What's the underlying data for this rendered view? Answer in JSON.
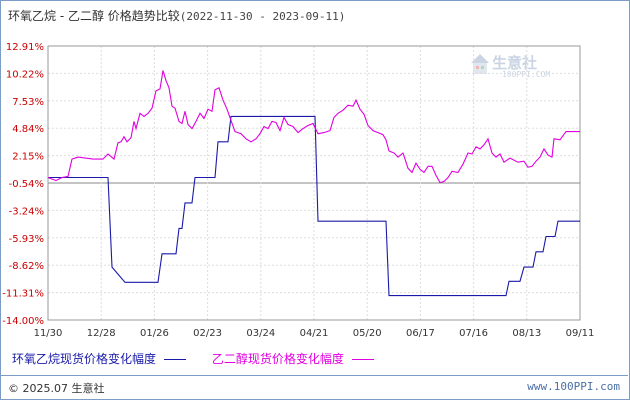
{
  "header": {
    "title": "环氧乙烷 - 乙二醇 价格趋势比较",
    "date_range": "(2022-11-30 - 2023-09-11)"
  },
  "watermark": {
    "text": "生意社",
    "url": "100PPI.COM"
  },
  "footer": {
    "copyright": "© 2025.07 生意社",
    "site": "www.100PPI.com"
  },
  "colors": {
    "series1": "#1a1aaa",
    "series2": "#e000e0",
    "grid": "#dddddd",
    "zero_line": "#888888"
  },
  "chart_data": {
    "type": "line",
    "title": "环氧乙烷 - 乙二醇 价格趋势比较",
    "ylim": [
      -14.0,
      12.91
    ],
    "y_ticks": [
      "12.91%",
      "10.22%",
      "7.53%",
      "4.84%",
      "2.15%",
      "-0.54%",
      "-3.24%",
      "-5.93%",
      "-8.62%",
      "-11.31%",
      "-14.00%"
    ],
    "x_ticks": [
      "11/30",
      "12/28",
      "01/26",
      "02/23",
      "03/24",
      "04/21",
      "05/20",
      "06/17",
      "07/16",
      "08/13",
      "09/11"
    ],
    "grid": true,
    "legend_position": "bottom",
    "series": [
      {
        "name": "环氧乙烷现货价格变化幅度",
        "points": [
          [
            0,
            0
          ],
          [
            60,
            0
          ],
          [
            64,
            -8.8
          ],
          [
            77,
            -10.3
          ],
          [
            110,
            -10.3
          ],
          [
            114,
            -7.5
          ],
          [
            128,
            -7.5
          ],
          [
            131,
            -5.0
          ],
          [
            134,
            -5.0
          ],
          [
            137,
            -2.5
          ],
          [
            144,
            -2.5
          ],
          [
            147,
            0
          ],
          [
            167,
            0
          ],
          [
            170,
            3.5
          ],
          [
            180,
            3.5
          ],
          [
            183,
            6.0
          ],
          [
            267,
            6.0
          ],
          [
            270,
            -4.3
          ],
          [
            338,
            -4.3
          ],
          [
            341,
            -11.6
          ],
          [
            458,
            -11.6
          ],
          [
            461,
            -10.2
          ],
          [
            472,
            -10.2
          ],
          [
            476,
            -8.8
          ],
          [
            485,
            -8.8
          ],
          [
            488,
            -7.3
          ],
          [
            495,
            -7.3
          ],
          [
            498,
            -5.8
          ],
          [
            507,
            -5.8
          ],
          [
            510,
            -4.3
          ],
          [
            532,
            -4.3
          ]
        ]
      },
      {
        "name": "乙二醇现货价格变化幅度",
        "points": [
          [
            0,
            0
          ],
          [
            8,
            -0.3
          ],
          [
            14,
            0
          ],
          [
            20,
            0.1
          ],
          [
            24,
            1.8
          ],
          [
            30,
            2.0
          ],
          [
            45,
            1.8
          ],
          [
            55,
            1.8
          ],
          [
            60,
            2.3
          ],
          [
            66,
            1.8
          ],
          [
            70,
            3.4
          ],
          [
            73,
            3.5
          ],
          [
            76,
            4.0
          ],
          [
            79,
            3.5
          ],
          [
            83,
            3.9
          ],
          [
            86,
            5.5
          ],
          [
            88,
            4.8
          ],
          [
            92,
            6.3
          ],
          [
            96,
            6.0
          ],
          [
            100,
            6.3
          ],
          [
            104,
            6.8
          ],
          [
            108,
            8.5
          ],
          [
            112,
            8.7
          ],
          [
            115,
            10.5
          ],
          [
            118,
            9.5
          ],
          [
            121,
            8.8
          ],
          [
            124,
            7.0
          ],
          [
            127,
            6.8
          ],
          [
            131,
            5.5
          ],
          [
            134,
            5.3
          ],
          [
            137,
            6.5
          ],
          [
            140,
            5.2
          ],
          [
            144,
            4.8
          ],
          [
            148,
            5.5
          ],
          [
            152,
            6.3
          ],
          [
            156,
            5.8
          ],
          [
            160,
            6.7
          ],
          [
            164,
            6.5
          ],
          [
            167,
            8.6
          ],
          [
            171,
            8.8
          ],
          [
            175,
            7.6
          ],
          [
            179,
            6.7
          ],
          [
            183,
            5.6
          ],
          [
            187,
            4.5
          ],
          [
            193,
            4.3
          ],
          [
            198,
            3.8
          ],
          [
            203,
            3.5
          ],
          [
            208,
            3.8
          ],
          [
            212,
            4.3
          ],
          [
            216,
            5.0
          ],
          [
            220,
            4.8
          ],
          [
            224,
            5.5
          ],
          [
            228,
            5.4
          ],
          [
            232,
            4.6
          ],
          [
            236,
            5.9
          ],
          [
            240,
            5.2
          ],
          [
            245,
            5.0
          ],
          [
            250,
            4.4
          ],
          [
            255,
            4.8
          ],
          [
            260,
            5.1
          ],
          [
            265,
            5.3
          ],
          [
            270,
            4.3
          ],
          [
            276,
            4.4
          ],
          [
            282,
            4.6
          ],
          [
            286,
            5.9
          ],
          [
            290,
            6.3
          ],
          [
            295,
            6.6
          ],
          [
            300,
            7.1
          ],
          [
            305,
            7.0
          ],
          [
            308,
            7.6
          ],
          [
            312,
            6.7
          ],
          [
            316,
            6.2
          ],
          [
            320,
            5.1
          ],
          [
            325,
            4.6
          ],
          [
            330,
            4.4
          ],
          [
            335,
            4.2
          ],
          [
            338,
            3.7
          ],
          [
            341,
            2.6
          ],
          [
            346,
            2.4
          ],
          [
            350,
            2.0
          ],
          [
            355,
            2.4
          ],
          [
            360,
            0.9
          ],
          [
            364,
            0.5
          ],
          [
            368,
            1.4
          ],
          [
            372,
            0.8
          ],
          [
            376,
            0.5
          ],
          [
            380,
            1.1
          ],
          [
            384,
            1.1
          ],
          [
            388,
            0.2
          ],
          [
            392,
            -0.5
          ],
          [
            396,
            -0.4
          ],
          [
            400,
            0
          ],
          [
            404,
            0.6
          ],
          [
            410,
            0.5
          ],
          [
            415,
            1.3
          ],
          [
            420,
            2.4
          ],
          [
            424,
            2.3
          ],
          [
            428,
            3.0
          ],
          [
            432,
            2.8
          ],
          [
            436,
            3.2
          ],
          [
            440,
            3.8
          ],
          [
            444,
            2.4
          ],
          [
            448,
            2.0
          ],
          [
            452,
            2.3
          ],
          [
            456,
            1.5
          ],
          [
            462,
            1.9
          ],
          [
            470,
            1.5
          ],
          [
            476,
            1.6
          ],
          [
            480,
            1.0
          ],
          [
            484,
            1.1
          ],
          [
            488,
            1.6
          ],
          [
            492,
            2.0
          ],
          [
            496,
            2.8
          ],
          [
            500,
            2.2
          ],
          [
            504,
            2.0
          ],
          [
            506,
            3.8
          ],
          [
            512,
            3.7
          ],
          [
            518,
            4.5
          ],
          [
            532,
            4.5
          ]
        ]
      }
    ]
  }
}
